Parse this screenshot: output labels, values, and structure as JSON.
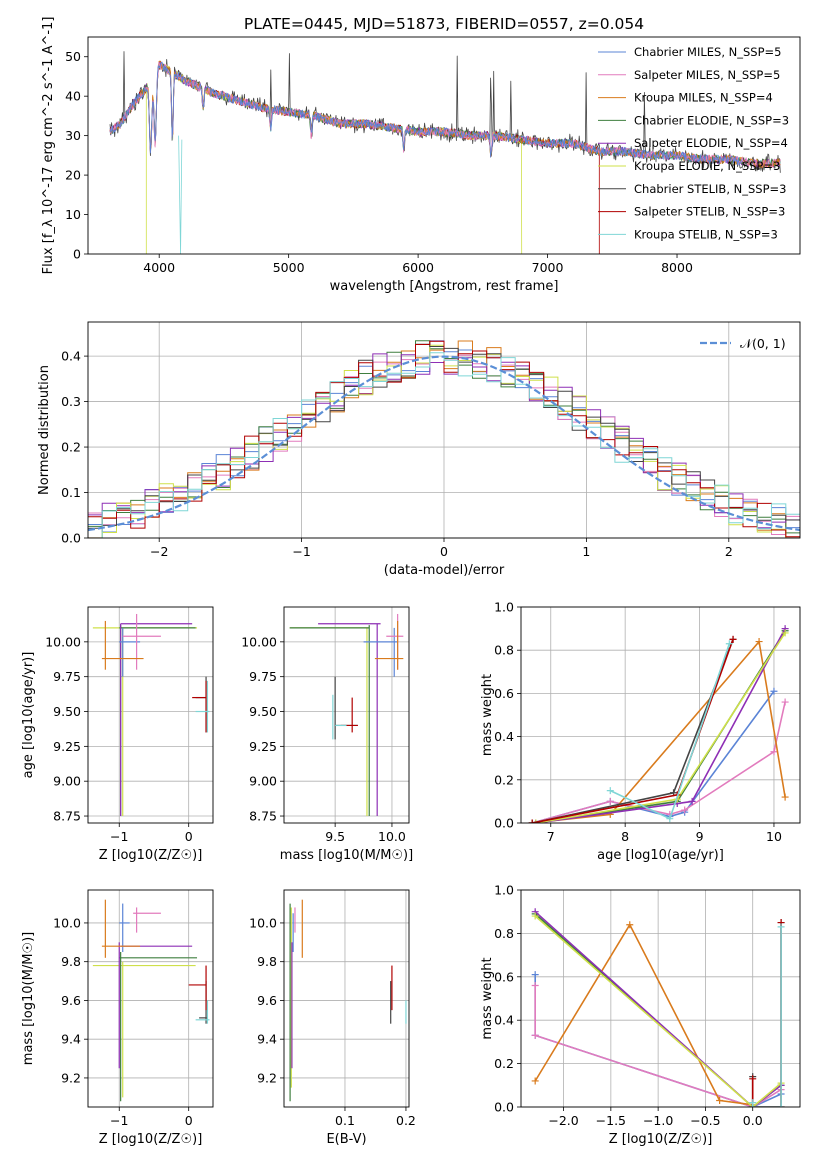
{
  "figure_title": "PLATE=0445, MJD=51873, FIBERID=0557, z=0.054",
  "colors": {
    "chabrier_miles": "#5b84d6",
    "salpeter_miles": "#e27bbd",
    "kroupa_miles": "#d97b1d",
    "chabrier_elodie": "#3f7f3f",
    "salpeter_elodie": "#8e2fb5",
    "kroupa_elodie": "#cfe04a",
    "chabrier_stelib": "#444444",
    "salpeter_stelib": "#b00000",
    "kroupa_stelib": "#7fd6d6",
    "normal": "#5b8fd6",
    "grid": "#b0b0b0"
  },
  "chart_data": [
    {
      "id": "spectrum",
      "type": "line",
      "xlabel": "wavelength [Angstrom, rest frame]",
      "ylabel": "Flux [f_λ 10^-17 erg cm^-2 s^-1 A^-1]",
      "xlim": [
        3450,
        8950
      ],
      "ylim": [
        0,
        55
      ],
      "xticks": [
        4000,
        5000,
        6000,
        7000,
        8000
      ],
      "yticks": [
        0,
        10,
        20,
        30,
        40,
        50
      ],
      "grid": false,
      "legend": "top-right",
      "series": [
        {
          "name": "Chabrier MILES, N_SSP=5",
          "key": "chabrier_miles"
        },
        {
          "name": "Salpeter MILES, N_SSP=5",
          "key": "salpeter_miles"
        },
        {
          "name": "Kroupa MILES, N_SSP=4",
          "key": "kroupa_miles"
        },
        {
          "name": "Chabrier ELODIE, N_SSP=3",
          "key": "chabrier_elodie"
        },
        {
          "name": "Salpeter ELODIE, N_SSP=4",
          "key": "salpeter_elodie"
        },
        {
          "name": "Kroupa ELODIE, N_SSP=3",
          "key": "kroupa_elodie"
        },
        {
          "name": "Chabrier STELIB, N_SSP=3",
          "key": "chabrier_stelib"
        },
        {
          "name": "Salpeter STELIB, N_SSP=3",
          "key": "salpeter_stelib"
        },
        {
          "name": "Kroupa STELIB, N_SSP=3",
          "key": "kroupa_stelib"
        }
      ],
      "continuum": {
        "x": [
          3620,
          3700,
          3800,
          3900,
          4000,
          4100,
          4200,
          4400,
          4600,
          4800,
          5000,
          5200,
          5400,
          5600,
          5800,
          6000,
          6200,
          6400,
          6600,
          6800,
          7000,
          7200,
          7400,
          7600,
          7800,
          8000,
          8200,
          8400,
          8600,
          8800
        ],
        "y": [
          31,
          33,
          38,
          42,
          48,
          46,
          44,
          41,
          39,
          37,
          36,
          35,
          33,
          33,
          32,
          31,
          31,
          30,
          30,
          29,
          28,
          28,
          26,
          26,
          25,
          25,
          24,
          24,
          23,
          23
        ]
      },
      "absorption_lines": [
        3934,
        3969,
        4102,
        4340,
        4861,
        5175,
        5890,
        6563
      ],
      "emission_lines": [
        3727,
        4861,
        5007,
        6300,
        6563,
        6583,
        6717,
        7300,
        7750
      ],
      "truncated_ends": {
        "kroupa_elodie_lo": 3900,
        "kroupa_elodie_hi": 6800,
        "salpeter_stelib_hi": 7400,
        "chabrier_miles_hi": 8500
      }
    },
    {
      "id": "residuals",
      "type": "step",
      "xlabel": "(data-model)/error",
      "ylabel": "Normed distribution",
      "xlim": [
        -2.5,
        2.5
      ],
      "ylim": [
        0,
        0.475
      ],
      "xticks": [
        -2,
        -1,
        0,
        1,
        2
      ],
      "yticks": [
        0.0,
        0.1,
        0.2,
        0.3,
        0.4
      ],
      "grid": true,
      "legend": "top-right",
      "normal_label": "𝒩(0, 1)",
      "bin_width": 0.1
    },
    {
      "id": "age_vs_Z",
      "type": "errorbar",
      "xlabel": "Z [log10(Z/Z☉)]",
      "ylabel": "age [log10(age/yr)]",
      "xlim": [
        -1.45,
        0.35
      ],
      "ylim": [
        8.7,
        10.25
      ],
      "xticks": [
        -1,
        0
      ],
      "yticks": [
        8.75,
        9.0,
        9.25,
        9.5,
        9.75,
        10.0
      ],
      "grid": true
    },
    {
      "id": "age_vs_mass",
      "type": "errorbar",
      "xlabel": "mass [log10(M/M☉)]",
      "ylabel": "",
      "xlim": [
        9.05,
        10.15
      ],
      "ylim": [
        8.7,
        10.25
      ],
      "xticks": [
        9.5,
        10.0
      ],
      "yticks": [
        8.75,
        9.0,
        9.25,
        9.5,
        9.75,
        10.0
      ],
      "grid": true
    },
    {
      "id": "weight_vs_age",
      "type": "line",
      "xlabel": "age [log10(age/yr)]",
      "ylabel": "mass weight",
      "xlim": [
        6.6,
        10.35
      ],
      "ylim": [
        0,
        1.0
      ],
      "xticks": [
        7,
        8,
        9,
        10
      ],
      "yticks": [
        0.0,
        0.2,
        0.4,
        0.6,
        0.8,
        1.0
      ],
      "grid": true,
      "series": [
        {
          "key": "chabrier_miles",
          "x": [
            6.75,
            7.8,
            8.6,
            8.8,
            10.0
          ],
          "y": [
            0.0,
            0.1,
            0.03,
            0.05,
            0.61
          ]
        },
        {
          "key": "salpeter_miles",
          "x": [
            6.75,
            7.8,
            8.6,
            8.8,
            10.0,
            10.15
          ],
          "y": [
            0.0,
            0.1,
            0.04,
            0.06,
            0.33,
            0.56
          ]
        },
        {
          "key": "kroupa_miles",
          "x": [
            6.75,
            7.8,
            9.8,
            10.15
          ],
          "y": [
            0.0,
            0.04,
            0.84,
            0.12
          ]
        },
        {
          "key": "chabrier_elodie",
          "x": [
            6.8,
            8.7,
            10.15
          ],
          "y": [
            0.0,
            0.1,
            0.89
          ]
        },
        {
          "key": "salpeter_elodie",
          "x": [
            6.8,
            8.7,
            8.9,
            10.15
          ],
          "y": [
            0.0,
            0.09,
            0.1,
            0.9
          ]
        },
        {
          "key": "kroupa_elodie",
          "x": [
            6.8,
            8.7,
            10.15
          ],
          "y": [
            0.0,
            0.11,
            0.88
          ]
        },
        {
          "key": "chabrier_stelib",
          "x": [
            6.75,
            8.65,
            9.45
          ],
          "y": [
            0.0,
            0.14,
            0.85
          ]
        },
        {
          "key": "salpeter_stelib",
          "x": [
            6.75,
            8.7,
            9.45
          ],
          "y": [
            0.0,
            0.13,
            0.85
          ]
        },
        {
          "key": "kroupa_stelib",
          "x": [
            7.8,
            8.6,
            9.4
          ],
          "y": [
            0.15,
            0.02,
            0.83
          ]
        }
      ]
    },
    {
      "id": "mass_vs_Z",
      "type": "errorbar",
      "xlabel": "Z [log10(Z/Z☉)]",
      "ylabel": "mass [log10(M/M☉)]",
      "xlim": [
        -1.45,
        0.35
      ],
      "ylim": [
        9.05,
        10.17
      ],
      "xticks": [
        -1,
        0
      ],
      "yticks": [
        9.2,
        9.4,
        9.6,
        9.8,
        10.0
      ],
      "grid": true
    },
    {
      "id": "mass_vs_EBV",
      "type": "errorbar",
      "xlabel": "E(B-V)",
      "ylabel": "",
      "xlim": [
        0.0,
        0.205
      ],
      "ylim": [
        9.05,
        10.17
      ],
      "xticks": [
        0.1,
        0.2
      ],
      "yticks": [
        9.2,
        9.4,
        9.6,
        9.8,
        10.0
      ],
      "grid": true
    },
    {
      "id": "weight_vs_Z",
      "type": "line",
      "xlabel": "Z [log10(Z/Z☉)]",
      "ylabel": "mass weight",
      "xlim": [
        -2.45,
        0.5
      ],
      "ylim": [
        0,
        1.0
      ],
      "xticks": [
        -2.0,
        -1.5,
        -1.0,
        -0.5,
        0.0
      ],
      "yticks": [
        0.0,
        0.2,
        0.4,
        0.6,
        0.8,
        1.0
      ],
      "grid": true,
      "series": [
        {
          "key": "chabrier_miles",
          "x": [
            -2.3,
            -2.3,
            0.0,
            0.3
          ],
          "y": [
            0.61,
            0.33,
            0.0,
            0.06
          ]
        },
        {
          "key": "salpeter_miles",
          "x": [
            -2.3,
            -2.3,
            0.0,
            0.3
          ],
          "y": [
            0.56,
            0.33,
            0.0,
            0.08
          ]
        },
        {
          "key": "kroupa_miles",
          "x": [
            -2.3,
            -1.3,
            -0.35,
            0.0
          ],
          "y": [
            0.12,
            0.84,
            0.03,
            0.01
          ]
        },
        {
          "key": "chabrier_elodie",
          "x": [
            -2.3,
            0.0,
            0.3
          ],
          "y": [
            0.89,
            0.0,
            0.1
          ]
        },
        {
          "key": "salpeter_elodie",
          "x": [
            -2.3,
            0.0,
            0.3
          ],
          "y": [
            0.9,
            0.0,
            0.1
          ]
        },
        {
          "key": "kroupa_elodie",
          "x": [
            -2.3,
            0.0,
            0.3
          ],
          "y": [
            0.88,
            0.0,
            0.11
          ]
        },
        {
          "key": "chabrier_stelib",
          "x": [
            0.0,
            0.0,
            0.3,
            0.3
          ],
          "y": [
            0.14,
            0.0,
            0.0,
            0.85
          ]
        },
        {
          "key": "salpeter_stelib",
          "x": [
            0.0,
            0.0,
            0.3,
            0.3
          ],
          "y": [
            0.13,
            0.0,
            0.0,
            0.85
          ]
        },
        {
          "key": "kroupa_stelib",
          "x": [
            0.0,
            0.0,
            0.3,
            0.3
          ],
          "y": [
            0.02,
            0.0,
            0.0,
            0.83
          ]
        }
      ]
    }
  ]
}
